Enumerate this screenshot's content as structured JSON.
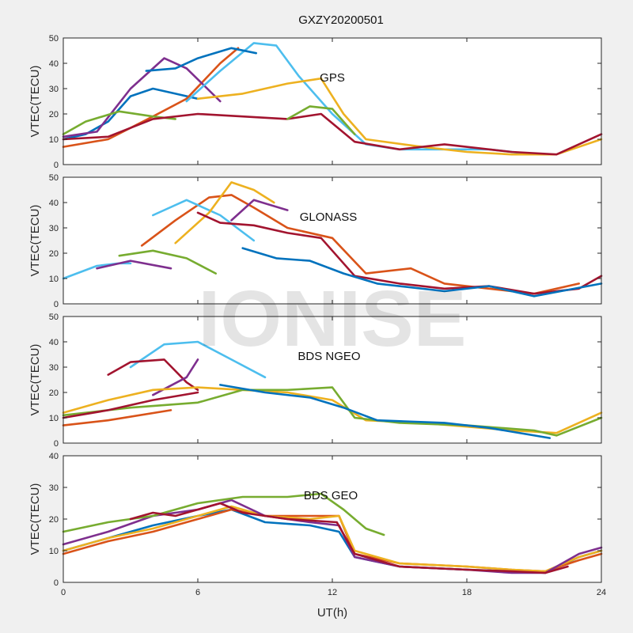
{
  "figure": {
    "title": "GXZY20200501",
    "xlabel": "UT(h)",
    "watermark": "IONISE",
    "background": "#f0f0f0",
    "colors": [
      "#0072BD",
      "#D95319",
      "#EDB120",
      "#7E2F8E",
      "#77AC30",
      "#4DBEEE",
      "#A2142F"
    ]
  },
  "chart_data": [
    {
      "type": "line",
      "annotation": "GPS",
      "ylabel": "VTEC(TECU)",
      "xlim": [
        0,
        24
      ],
      "ylim": [
        0,
        50
      ],
      "xticks": [
        0,
        6,
        12,
        18,
        24
      ],
      "yticks": [
        0,
        10,
        20,
        30,
        40,
        50
      ],
      "grid": false,
      "series": [
        {
          "color": "#0072BD",
          "x": [
            0,
            1,
            2,
            3,
            4,
            5,
            6
          ],
          "y": [
            10,
            12,
            17,
            27,
            30,
            28,
            26
          ]
        },
        {
          "color": "#D95319",
          "x": [
            0,
            2,
            4,
            5.5,
            7,
            7.8
          ],
          "y": [
            7,
            10,
            19,
            26,
            40,
            46
          ]
        },
        {
          "color": "#7E2F8E",
          "x": [
            0,
            1.5,
            3,
            4.5,
            5.5,
            7
          ],
          "y": [
            11,
            13,
            30,
            42,
            38,
            25
          ]
        },
        {
          "color": "#4DBEEE",
          "x": [
            5.5,
            7,
            8.5,
            9.5,
            10.5,
            12,
            13.5,
            15,
            17,
            19,
            21
          ],
          "y": [
            25,
            37,
            48,
            47,
            35,
            20,
            8,
            6,
            6,
            6,
            4
          ]
        },
        {
          "color": "#EDB120",
          "x": [
            6,
            8,
            10,
            11.5,
            12.5,
            13.5,
            16,
            18,
            20,
            22,
            24
          ],
          "y": [
            26,
            28,
            32,
            34,
            20,
            10,
            7,
            5,
            4,
            4,
            10
          ]
        },
        {
          "color": "#77AC30",
          "x": [
            0,
            1,
            2.5,
            4,
            5
          ],
          "y": [
            12,
            17,
            21,
            19,
            18
          ]
        },
        {
          "color": "#A2142F",
          "x": [
            0,
            2,
            4,
            6,
            8,
            10,
            11.5,
            13,
            15,
            17,
            20,
            22,
            24
          ],
          "y": [
            10,
            11,
            18,
            20,
            19,
            18,
            20,
            9,
            6,
            8,
            5,
            4,
            12
          ]
        },
        {
          "color": "#0072BD",
          "x": [
            3.7,
            5,
            6,
            7.5,
            8.6
          ],
          "y": [
            37,
            38,
            42,
            46,
            44
          ]
        },
        {
          "color": "#77AC30",
          "x": [
            10,
            11,
            12,
            13
          ],
          "y": [
            18,
            23,
            22,
            12
          ]
        }
      ]
    },
    {
      "type": "line",
      "annotation": "GLONASS",
      "ylabel": "VTEC(TECU)",
      "xlim": [
        0,
        24
      ],
      "ylim": [
        0,
        50
      ],
      "xticks": [
        0,
        6,
        12,
        18,
        24
      ],
      "yticks": [
        0,
        10,
        20,
        30,
        40,
        50
      ],
      "grid": false,
      "series": [
        {
          "color": "#4DBEEE",
          "x": [
            0,
            1.5,
            2.5,
            3
          ],
          "y": [
            10,
            15,
            16,
            16
          ]
        },
        {
          "color": "#7E2F8E",
          "x": [
            1.5,
            3,
            4.8
          ],
          "y": [
            14,
            17,
            14
          ]
        },
        {
          "color": "#77AC30",
          "x": [
            2.5,
            4,
            5.5,
            6.8
          ],
          "y": [
            19,
            21,
            18,
            12
          ]
        },
        {
          "color": "#D95319",
          "x": [
            3.5,
            5,
            6.5,
            7.5,
            8.5,
            10,
            12,
            13.5,
            15.5,
            17,
            19,
            21,
            23
          ],
          "y": [
            23,
            33,
            42,
            43,
            38,
            30,
            26,
            12,
            14,
            8,
            6,
            4,
            8
          ]
        },
        {
          "color": "#4DBEEE",
          "x": [
            4,
            5.5,
            7,
            8.5
          ],
          "y": [
            35,
            41,
            35,
            25
          ]
        },
        {
          "color": "#EDB120",
          "x": [
            5,
            6.5,
            7.5,
            8.5,
            9.4
          ],
          "y": [
            24,
            36,
            48,
            45,
            40
          ]
        },
        {
          "color": "#7E2F8E",
          "x": [
            7.5,
            8.5,
            10
          ],
          "y": [
            33,
            41,
            37
          ]
        },
        {
          "color": "#A2142F",
          "x": [
            6,
            7,
            8.5,
            10,
            11.5,
            13,
            15,
            17,
            19,
            21,
            23,
            24
          ],
          "y": [
            36,
            32,
            31,
            28,
            26,
            11,
            8,
            6,
            7,
            4,
            6,
            11
          ]
        },
        {
          "color": "#0072BD",
          "x": [
            8,
            9.5,
            11,
            12.5,
            14,
            17,
            19,
            21,
            24
          ],
          "y": [
            22,
            18,
            17,
            12,
            8,
            5,
            7,
            3,
            8
          ]
        }
      ]
    },
    {
      "type": "line",
      "annotation": "BDS NGEO",
      "ylabel": "VTEC(TECU)",
      "xlim": [
        0,
        24
      ],
      "ylim": [
        0,
        50
      ],
      "xticks": [
        0,
        6,
        12,
        18,
        24
      ],
      "yticks": [
        0,
        10,
        20,
        30,
        40,
        50
      ],
      "grid": false,
      "series": [
        {
          "color": "#4DBEEE",
          "x": [
            3,
            4.5,
            6,
            7.5,
            9
          ],
          "y": [
            30,
            39,
            40,
            33,
            26
          ]
        },
        {
          "color": "#A2142F",
          "x": [
            2,
            3,
            4.5,
            5.5,
            6
          ],
          "y": [
            27,
            32,
            33,
            24,
            21
          ]
        },
        {
          "color": "#7E2F8E",
          "x": [
            4,
            5.5,
            6
          ],
          "y": [
            19,
            26,
            33
          ]
        },
        {
          "color": "#EDB120",
          "x": [
            0,
            2,
            4,
            6,
            8,
            10,
            12,
            13.5,
            16,
            20,
            22,
            24
          ],
          "y": [
            12,
            17,
            21,
            22,
            21,
            20,
            17,
            9,
            8,
            5,
            4,
            12
          ]
        },
        {
          "color": "#77AC30",
          "x": [
            0,
            3,
            6,
            8,
            10,
            12,
            13,
            15,
            18,
            21,
            22,
            24
          ],
          "y": [
            11,
            14,
            16,
            21,
            21,
            22,
            10,
            8,
            7,
            5,
            3,
            10
          ]
        },
        {
          "color": "#D95319",
          "x": [
            0,
            2,
            4.8
          ],
          "y": [
            7,
            9,
            13
          ]
        },
        {
          "color": "#0072BD",
          "x": [
            7,
            9,
            11,
            12.5,
            14,
            17,
            19,
            21.7
          ],
          "y": [
            23,
            20,
            18,
            14,
            9,
            8,
            6,
            2
          ]
        },
        {
          "color": "#A2142F",
          "x": [
            0,
            2,
            4,
            6
          ],
          "y": [
            10,
            13,
            17,
            20
          ]
        }
      ]
    },
    {
      "type": "line",
      "annotation": "BDS GEO",
      "ylabel": "VTEC(TECU)",
      "xlim": [
        0,
        24
      ],
      "ylim": [
        0,
        40
      ],
      "xticks": [
        0,
        6,
        12,
        18,
        24
      ],
      "yticks": [
        0,
        10,
        20,
        30,
        40
      ],
      "grid": false,
      "series": [
        {
          "color": "#0072BD",
          "x": [
            0,
            2,
            4,
            6,
            7.5,
            9,
            11,
            12.3,
            13,
            15,
            18,
            20,
            21.5,
            23,
            24
          ],
          "y": [
            10,
            14,
            18,
            21,
            23,
            19,
            18,
            16,
            8,
            5,
            4,
            3.5,
            3,
            8,
            10
          ]
        },
        {
          "color": "#D95319",
          "x": [
            0,
            2,
            4,
            6,
            7.5,
            9,
            11,
            12.3,
            13,
            15,
            18,
            20,
            21.5,
            23,
            24
          ],
          "y": [
            9,
            13,
            16,
            20,
            23,
            21,
            21,
            21,
            9,
            6,
            5,
            4,
            3.5,
            7,
            9
          ]
        },
        {
          "color": "#EDB120",
          "x": [
            0,
            2,
            4,
            6,
            7.5,
            9,
            11,
            12.3,
            13,
            15,
            18,
            20,
            21.5,
            23,
            24
          ],
          "y": [
            10,
            14,
            17,
            21,
            24,
            21,
            20,
            21,
            10,
            6,
            5,
            4,
            3.5,
            8,
            10
          ]
        },
        {
          "color": "#7E2F8E",
          "x": [
            0,
            2,
            4,
            6,
            7.5,
            9,
            11,
            12.3,
            13,
            15,
            18,
            20,
            21.5,
            23,
            24
          ],
          "y": [
            12,
            16,
            21,
            23,
            26,
            21,
            19,
            18,
            8,
            5,
            4,
            3,
            3,
            9,
            11
          ]
        },
        {
          "color": "#77AC30",
          "x": [
            0,
            2,
            4,
            6,
            8,
            10,
            11.5,
            12.5,
            13.5,
            14.3
          ],
          "y": [
            16,
            19,
            21,
            25,
            27,
            27,
            28,
            23,
            17,
            15
          ]
        },
        {
          "color": "#A2142F",
          "x": [
            3,
            4,
            5,
            6,
            7,
            8,
            10,
            12.2,
            13,
            15,
            18,
            20,
            21.5,
            22.5
          ],
          "y": [
            20,
            22,
            21,
            23,
            25,
            22,
            20,
            19,
            9,
            5,
            4,
            3.5,
            3,
            5
          ]
        }
      ]
    }
  ]
}
